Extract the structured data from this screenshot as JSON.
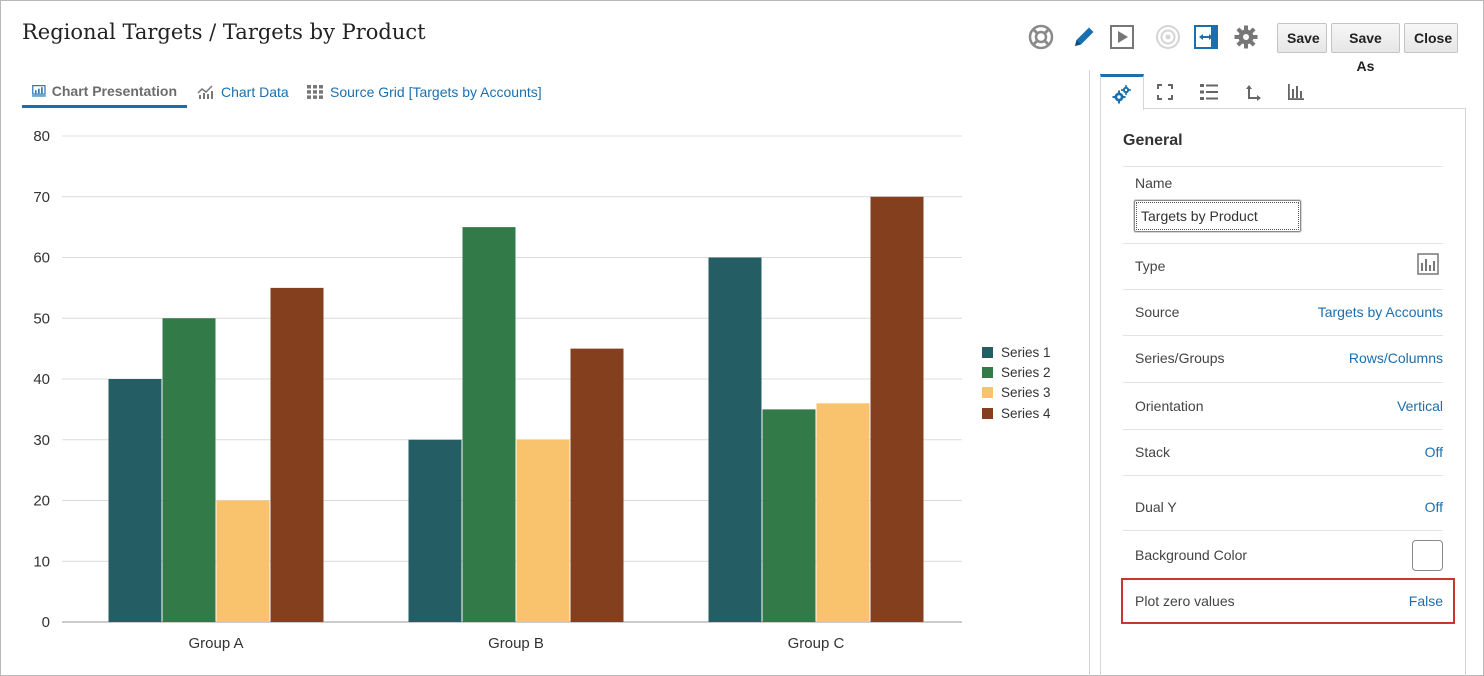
{
  "page_title": "Regional Targets / Targets by Product",
  "toolbar": {
    "icons": [
      "lifebuoy-icon",
      "pencil-icon",
      "play-icon",
      "target-icon",
      "fit-width-icon",
      "gear-icon"
    ],
    "save_label": "Save",
    "save_as_label": "Save As",
    "close_label": "Close",
    "accent": "#1a6fb0"
  },
  "tabs": [
    {
      "label": "Chart Presentation",
      "icon": "chart-presentation-icon",
      "active": true
    },
    {
      "label": "Chart Data",
      "icon": "chart-data-icon",
      "active": false
    },
    {
      "label": "Source Grid [Targets by Accounts]",
      "icon": "grid-icon",
      "active": false
    }
  ],
  "chart_data": {
    "type": "bar",
    "categories": [
      "Group A",
      "Group B",
      "Group C"
    ],
    "series": [
      {
        "name": "Series 1",
        "color": "#245d63",
        "values": [
          40,
          30,
          60
        ]
      },
      {
        "name": "Series 2",
        "color": "#327b48",
        "values": [
          50,
          65,
          35
        ]
      },
      {
        "name": "Series 3",
        "color": "#f8c36c",
        "values": [
          20,
          30,
          36
        ]
      },
      {
        "name": "Series 4",
        "color": "#843f1f",
        "values": [
          55,
          45,
          70
        ]
      }
    ],
    "yticks": [
      0,
      10,
      20,
      30,
      40,
      50,
      60,
      70,
      80
    ],
    "ylim": [
      0,
      80
    ],
    "grid": true,
    "legend_position": "right"
  },
  "panel": {
    "tab_icons": [
      "gears-icon",
      "expand-icon",
      "list-icon",
      "axis-icon",
      "bar-chart-icon"
    ],
    "heading": "General",
    "name_label": "Name",
    "name_value": "Targets by Product",
    "type_label": "Type",
    "type_icon": "bar-chart-icon",
    "source_label": "Source",
    "source_value": "Targets by Accounts",
    "series_groups_label": "Series/Groups",
    "series_groups_value": "Rows/Columns",
    "orientation_label": "Orientation",
    "orientation_value": "Vertical",
    "stack_label": "Stack",
    "stack_value": "Off",
    "dual_y_label": "Dual Y",
    "dual_y_value": "Off",
    "background_color_label": "Background Color",
    "background_color_value": "#ffffff",
    "plot_zero_label": "Plot zero values",
    "plot_zero_value": "False",
    "highlight_color": "#c9352f"
  }
}
